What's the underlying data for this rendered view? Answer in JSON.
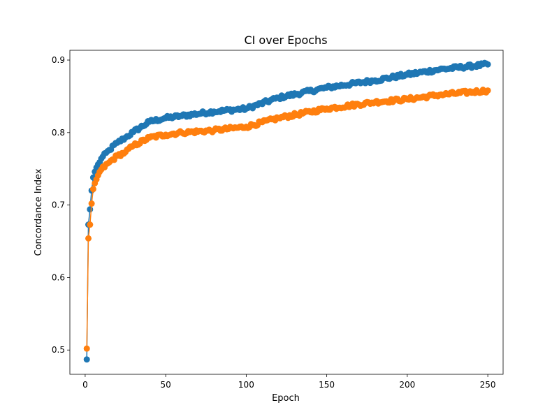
{
  "chart_data": {
    "type": "line",
    "title": "CI over Epochs",
    "xlabel": "Epoch",
    "ylabel": "Concordance Index",
    "xlim": [
      -9.5,
      259.5
    ],
    "ylim": [
      0.4665,
      0.9135
    ],
    "xticks": [
      0,
      50,
      100,
      150,
      200,
      250
    ],
    "yticks": [
      0.5,
      0.6,
      0.7,
      0.8,
      0.9
    ],
    "xtick_labels": [
      "0",
      "50",
      "100",
      "150",
      "200",
      "250"
    ],
    "ytick_labels": [
      "0.5",
      "0.6",
      "0.7",
      "0.8",
      "0.9"
    ],
    "grid": false,
    "legend": "none",
    "markers": true,
    "anchor_epochs": [
      1,
      2,
      3,
      4,
      5,
      6,
      8,
      10,
      15,
      20,
      25,
      30,
      40,
      50,
      60,
      80,
      100,
      120,
      150,
      180,
      200,
      220,
      250
    ],
    "series": [
      {
        "color": "#1f77b4",
        "values": [
          0.487,
          0.673,
          0.694,
          0.72,
          0.738,
          0.746,
          0.756,
          0.764,
          0.776,
          0.786,
          0.793,
          0.801,
          0.815,
          0.82,
          0.823,
          0.829,
          0.833,
          0.848,
          0.862,
          0.872,
          0.88,
          0.887,
          0.894
        ]
      },
      {
        "color": "#ff7f0e",
        "values": [
          0.502,
          0.654,
          0.673,
          0.702,
          0.722,
          0.73,
          0.741,
          0.749,
          0.759,
          0.768,
          0.773,
          0.782,
          0.793,
          0.797,
          0.8,
          0.803,
          0.808,
          0.82,
          0.833,
          0.842,
          0.846,
          0.852,
          0.858
        ]
      }
    ]
  }
}
